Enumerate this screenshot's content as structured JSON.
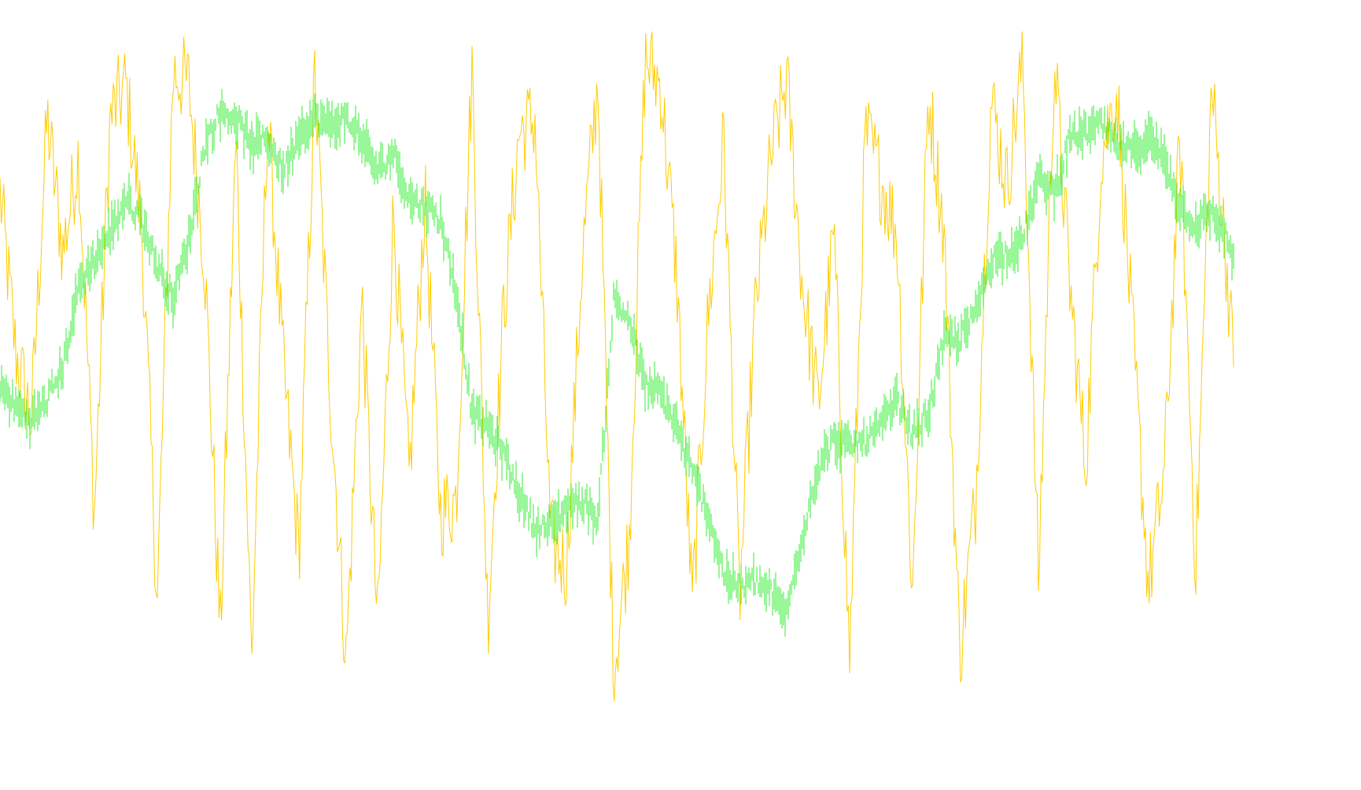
{
  "chart_data": {
    "type": "line",
    "title": "",
    "xlabel": "",
    "ylabel": "",
    "grid": false,
    "legend": "none",
    "background": "#ffffff",
    "x": [
      0,
      20,
      40,
      60,
      80,
      100,
      120,
      140,
      160,
      180,
      200,
      220,
      240,
      260,
      280,
      300,
      320,
      340,
      360,
      380,
      400,
      420,
      440,
      460,
      480,
      500,
      520,
      540,
      560,
      580,
      600,
      620,
      640,
      660,
      680,
      700,
      720,
      740,
      760,
      780,
      800,
      820,
      840,
      860,
      880,
      900,
      920,
      940,
      960,
      980,
      1000,
      1020,
      1040,
      1060,
      1080,
      1100,
      1120,
      1140,
      1160,
      1180,
      1200,
      1220,
      1240,
      1260,
      1280,
      1300,
      1320,
      1340,
      1360,
      1380,
      1400,
      1420,
      1440,
      1460,
      1480,
      1500,
      1520,
      1540,
      1560,
      1568
    ],
    "ylim": [
      0,
      100
    ],
    "series": [
      {
        "color": "#33ee33",
        "style": "bars",
        "values": [
          47,
          44,
          42,
          45,
          50,
          62,
          66,
          70,
          75,
          72,
          65,
          60,
          69,
          83,
          88,
          87,
          83,
          84,
          79,
          85,
          87,
          86,
          87,
          84,
          79,
          82,
          75,
          74,
          72,
          61,
          43,
          41,
          37,
          31,
          26,
          26,
          29,
          30,
          27,
          60,
          57,
          47,
          46,
          41,
          34,
          28,
          19,
          17,
          18,
          16,
          13,
          25,
          35,
          39,
          38,
          39,
          41,
          45,
          40,
          43,
          54,
          54,
          58,
          66,
          67,
          69,
          78,
          76,
          84,
          85,
          86,
          83,
          82,
          84,
          81,
          74,
          71,
          73,
          69,
          66
        ]
      },
      {
        "color": "#ffcc00",
        "style": "line",
        "values": [
          76,
          52,
          42,
          87,
          67,
          82,
          28,
          87,
          92,
          71,
          15,
          94,
          92,
          66,
          10,
          84,
          6,
          88,
          50,
          22,
          93,
          46,
          6,
          60,
          11,
          73,
          33,
          75,
          28,
          30,
          95,
          12,
          58,
          85,
          87,
          24,
          20,
          66,
          93,
          4,
          25,
          96,
          92,
          64,
          14,
          57,
          84,
          15,
          58,
          81,
          93,
          62,
          44,
          70,
          6,
          85,
          78,
          70,
          16,
          91,
          70,
          7,
          30,
          90,
          77,
          96,
          18,
          96,
          62,
          35,
          82,
          91,
          54,
          17,
          34,
          84,
          20,
          92,
          64,
          50
        ]
      }
    ]
  }
}
